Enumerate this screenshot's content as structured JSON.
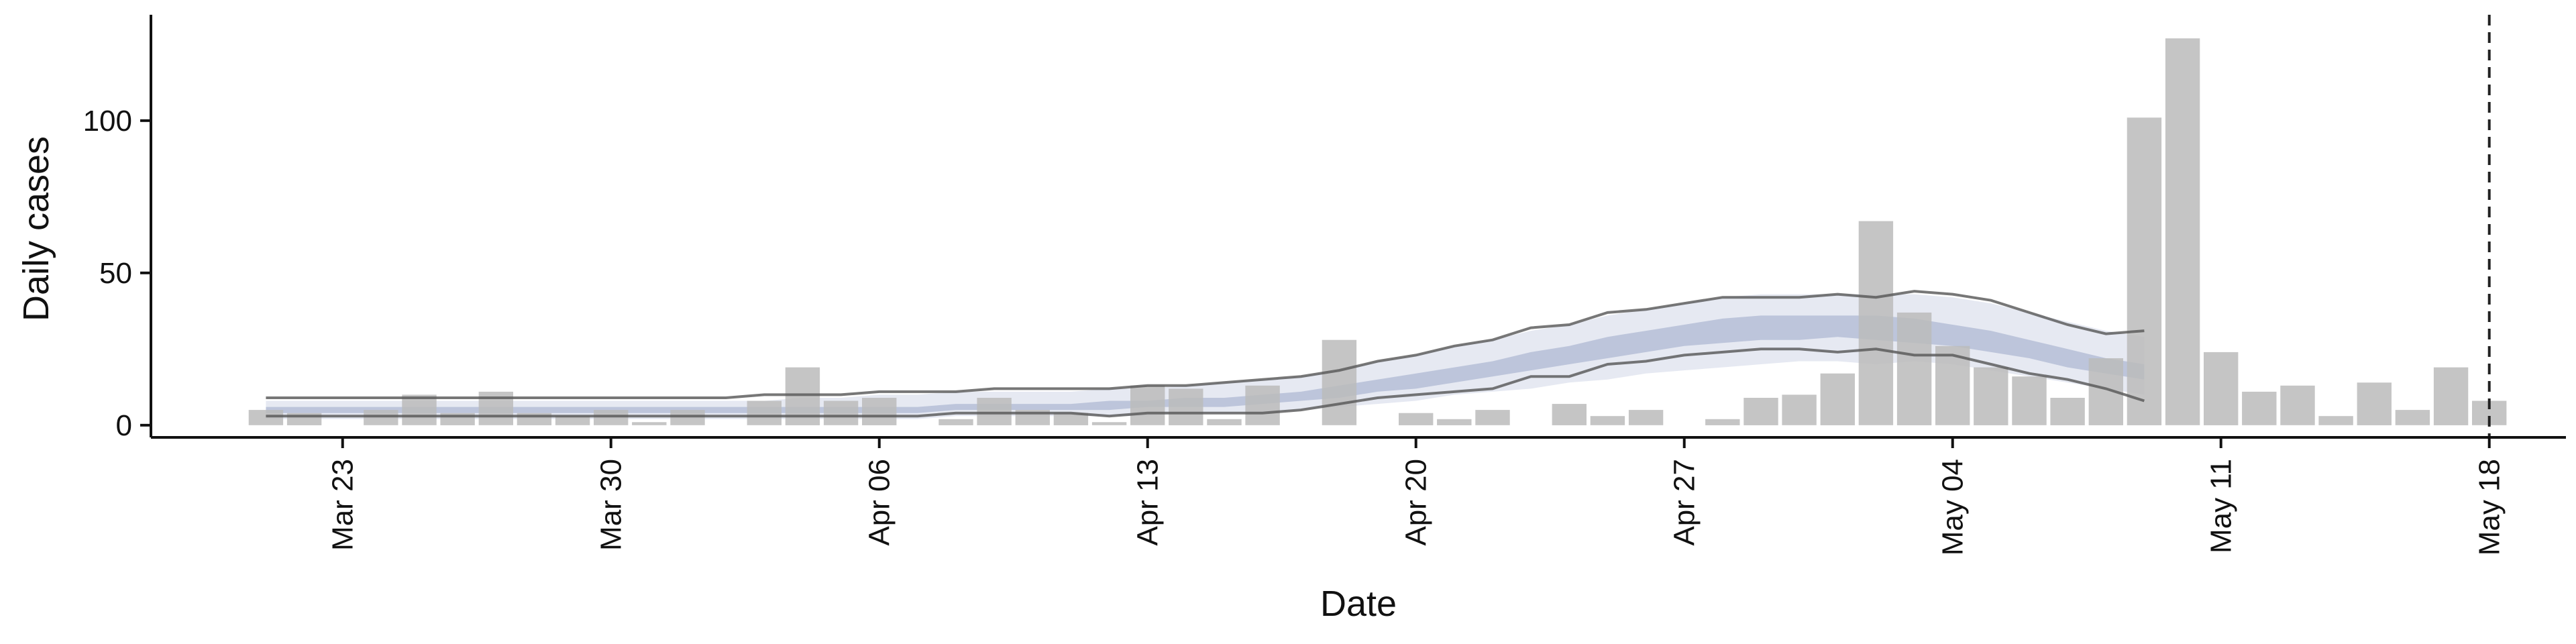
{
  "chart_data": {
    "type": "bar",
    "xlabel": "Date",
    "ylabel": "Daily cases",
    "x_start": "2020-03-21",
    "x_range": [
      "2020-03-18",
      "2020-05-20"
    ],
    "ylim": [
      -4,
      133
    ],
    "y_ticks": [
      0,
      50,
      100
    ],
    "y_tick_labels": [
      "0",
      "50",
      "100"
    ],
    "x_ticks": [
      "2020-03-23",
      "2020-03-30",
      "2020-04-06",
      "2020-04-13",
      "2020-04-20",
      "2020-04-27",
      "2020-05-04",
      "2020-05-11",
      "2020-05-18"
    ],
    "x_tick_labels": [
      "Mar 23",
      "Mar 30",
      "Apr 06",
      "Apr 13",
      "Apr 20",
      "Apr 27",
      "May 04",
      "May 11",
      "May 18"
    ],
    "grid": false,
    "bar_color": "#bbbbbb",
    "band_outer_color": "#c7cfe2",
    "band_inner_color": "#9ba8c8",
    "line_color": "#555555",
    "reference_line": {
      "date": "2020-05-18",
      "style": "dashed",
      "color": "#222222"
    },
    "bars": {
      "dates": [
        "2020-03-21",
        "2020-03-22",
        "2020-03-23",
        "2020-03-24",
        "2020-03-25",
        "2020-03-26",
        "2020-03-27",
        "2020-03-28",
        "2020-03-29",
        "2020-03-30",
        "2020-03-31",
        "2020-04-01",
        "2020-04-02",
        "2020-04-03",
        "2020-04-04",
        "2020-04-05",
        "2020-04-06",
        "2020-04-07",
        "2020-04-08",
        "2020-04-09",
        "2020-04-10",
        "2020-04-11",
        "2020-04-12",
        "2020-04-13",
        "2020-04-14",
        "2020-04-15",
        "2020-04-16",
        "2020-04-17",
        "2020-04-18",
        "2020-04-19",
        "2020-04-20",
        "2020-04-21",
        "2020-04-22",
        "2020-04-23",
        "2020-04-24",
        "2020-04-25",
        "2020-04-26",
        "2020-04-27",
        "2020-04-28",
        "2020-04-29",
        "2020-04-30",
        "2020-05-01",
        "2020-05-02",
        "2020-05-03",
        "2020-05-04",
        "2020-05-05",
        "2020-05-06",
        "2020-05-07",
        "2020-05-08",
        "2020-05-09",
        "2020-05-10",
        "2020-05-11",
        "2020-05-12",
        "2020-05-13",
        "2020-05-14",
        "2020-05-15",
        "2020-05-16",
        "2020-05-17",
        "2020-05-18"
      ],
      "values": [
        5,
        4,
        0,
        5,
        10,
        4,
        11,
        4,
        3,
        5,
        1,
        5,
        0,
        8,
        19,
        8,
        9,
        0,
        2,
        9,
        5,
        4,
        1,
        13,
        12,
        2,
        13,
        0,
        28,
        0,
        4,
        2,
        5,
        0,
        7,
        3,
        5,
        0,
        2,
        9,
        10,
        17,
        67,
        37,
        26,
        19,
        16,
        9,
        22,
        101,
        127,
        24,
        11,
        13,
        3,
        14,
        5,
        19,
        8
      ]
    },
    "estimate": {
      "dates": [
        "2020-03-21",
        "2020-03-22",
        "2020-03-23",
        "2020-03-24",
        "2020-03-25",
        "2020-03-26",
        "2020-03-27",
        "2020-03-28",
        "2020-03-29",
        "2020-03-30",
        "2020-03-31",
        "2020-04-01",
        "2020-04-02",
        "2020-04-03",
        "2020-04-04",
        "2020-04-05",
        "2020-04-06",
        "2020-04-07",
        "2020-04-08",
        "2020-04-09",
        "2020-04-10",
        "2020-04-11",
        "2020-04-12",
        "2020-04-13",
        "2020-04-14",
        "2020-04-15",
        "2020-04-16",
        "2020-04-17",
        "2020-04-18",
        "2020-04-19",
        "2020-04-20",
        "2020-04-21",
        "2020-04-22",
        "2020-04-23",
        "2020-04-24",
        "2020-04-25",
        "2020-04-26",
        "2020-04-27",
        "2020-04-28",
        "2020-04-29",
        "2020-04-30",
        "2020-05-01",
        "2020-05-02",
        "2020-05-03",
        "2020-05-04",
        "2020-05-05",
        "2020-05-06",
        "2020-05-07",
        "2020-05-08",
        "2020-05-09"
      ],
      "lower90": [
        2,
        2,
        2,
        2,
        2,
        2,
        2,
        2,
        2,
        2,
        2,
        2,
        2,
        2,
        2,
        2,
        2,
        2,
        3,
        3,
        3,
        3,
        3,
        3,
        4,
        4,
        4,
        5,
        6,
        7,
        8,
        10,
        11,
        12,
        14,
        15,
        17,
        18,
        19,
        20,
        21,
        21,
        20,
        21,
        20,
        18,
        16,
        14,
        12,
        10
      ],
      "lower50": [
        4,
        4,
        4,
        4,
        4,
        4,
        4,
        4,
        4,
        4,
        4,
        4,
        4,
        4,
        4,
        4,
        4,
        4,
        5,
        5,
        5,
        5,
        5,
        6,
        6,
        6,
        7,
        8,
        9,
        11,
        12,
        14,
        16,
        18,
        20,
        22,
        24,
        26,
        27,
        28,
        28,
        29,
        28,
        27,
        26,
        24,
        22,
        19,
        17,
        15
      ],
      "upper50": [
        6,
        6,
        6,
        6,
        6,
        6,
        6,
        6,
        6,
        6,
        6,
        6,
        6,
        6,
        6,
        6,
        6,
        6,
        7,
        7,
        7,
        7,
        8,
        8,
        9,
        9,
        10,
        11,
        13,
        15,
        17,
        19,
        21,
        24,
        26,
        29,
        31,
        33,
        35,
        36,
        36,
        36,
        36,
        35,
        33,
        31,
        28,
        25,
        22,
        20
      ],
      "upper90": [
        8,
        8,
        8,
        8,
        8,
        8,
        8,
        8,
        8,
        8,
        8,
        8,
        8,
        8,
        9,
        9,
        10,
        10,
        11,
        11,
        11,
        11,
        12,
        12,
        13,
        14,
        15,
        16,
        18,
        21,
        23,
        26,
        28,
        31,
        33,
        36,
        38,
        40,
        42,
        43,
        43,
        43,
        43,
        43,
        42,
        40,
        37,
        34,
        31,
        29
      ],
      "line_lower": [
        3,
        3,
        3,
        3,
        3,
        3,
        3,
        3,
        3,
        3,
        3,
        3,
        3,
        3,
        3,
        3,
        3,
        3,
        4,
        4,
        4,
        4,
        3,
        4,
        4,
        4,
        4,
        5,
        7,
        9,
        10,
        11,
        12,
        16,
        16,
        20,
        21,
        23,
        24,
        25,
        25,
        24,
        25,
        23,
        23,
        20,
        17,
        15,
        12,
        8
      ],
      "line_upper": [
        9,
        9,
        9,
        9,
        9,
        9,
        9,
        9,
        9,
        9,
        9,
        9,
        9,
        10,
        10,
        10,
        11,
        11,
        11,
        12,
        12,
        12,
        12,
        13,
        13,
        14,
        15,
        16,
        18,
        21,
        23,
        26,
        28,
        32,
        33,
        37,
        38,
        40,
        42,
        42,
        42,
        43,
        42,
        44,
        43,
        41,
        37,
        33,
        30,
        31
      ]
    }
  }
}
